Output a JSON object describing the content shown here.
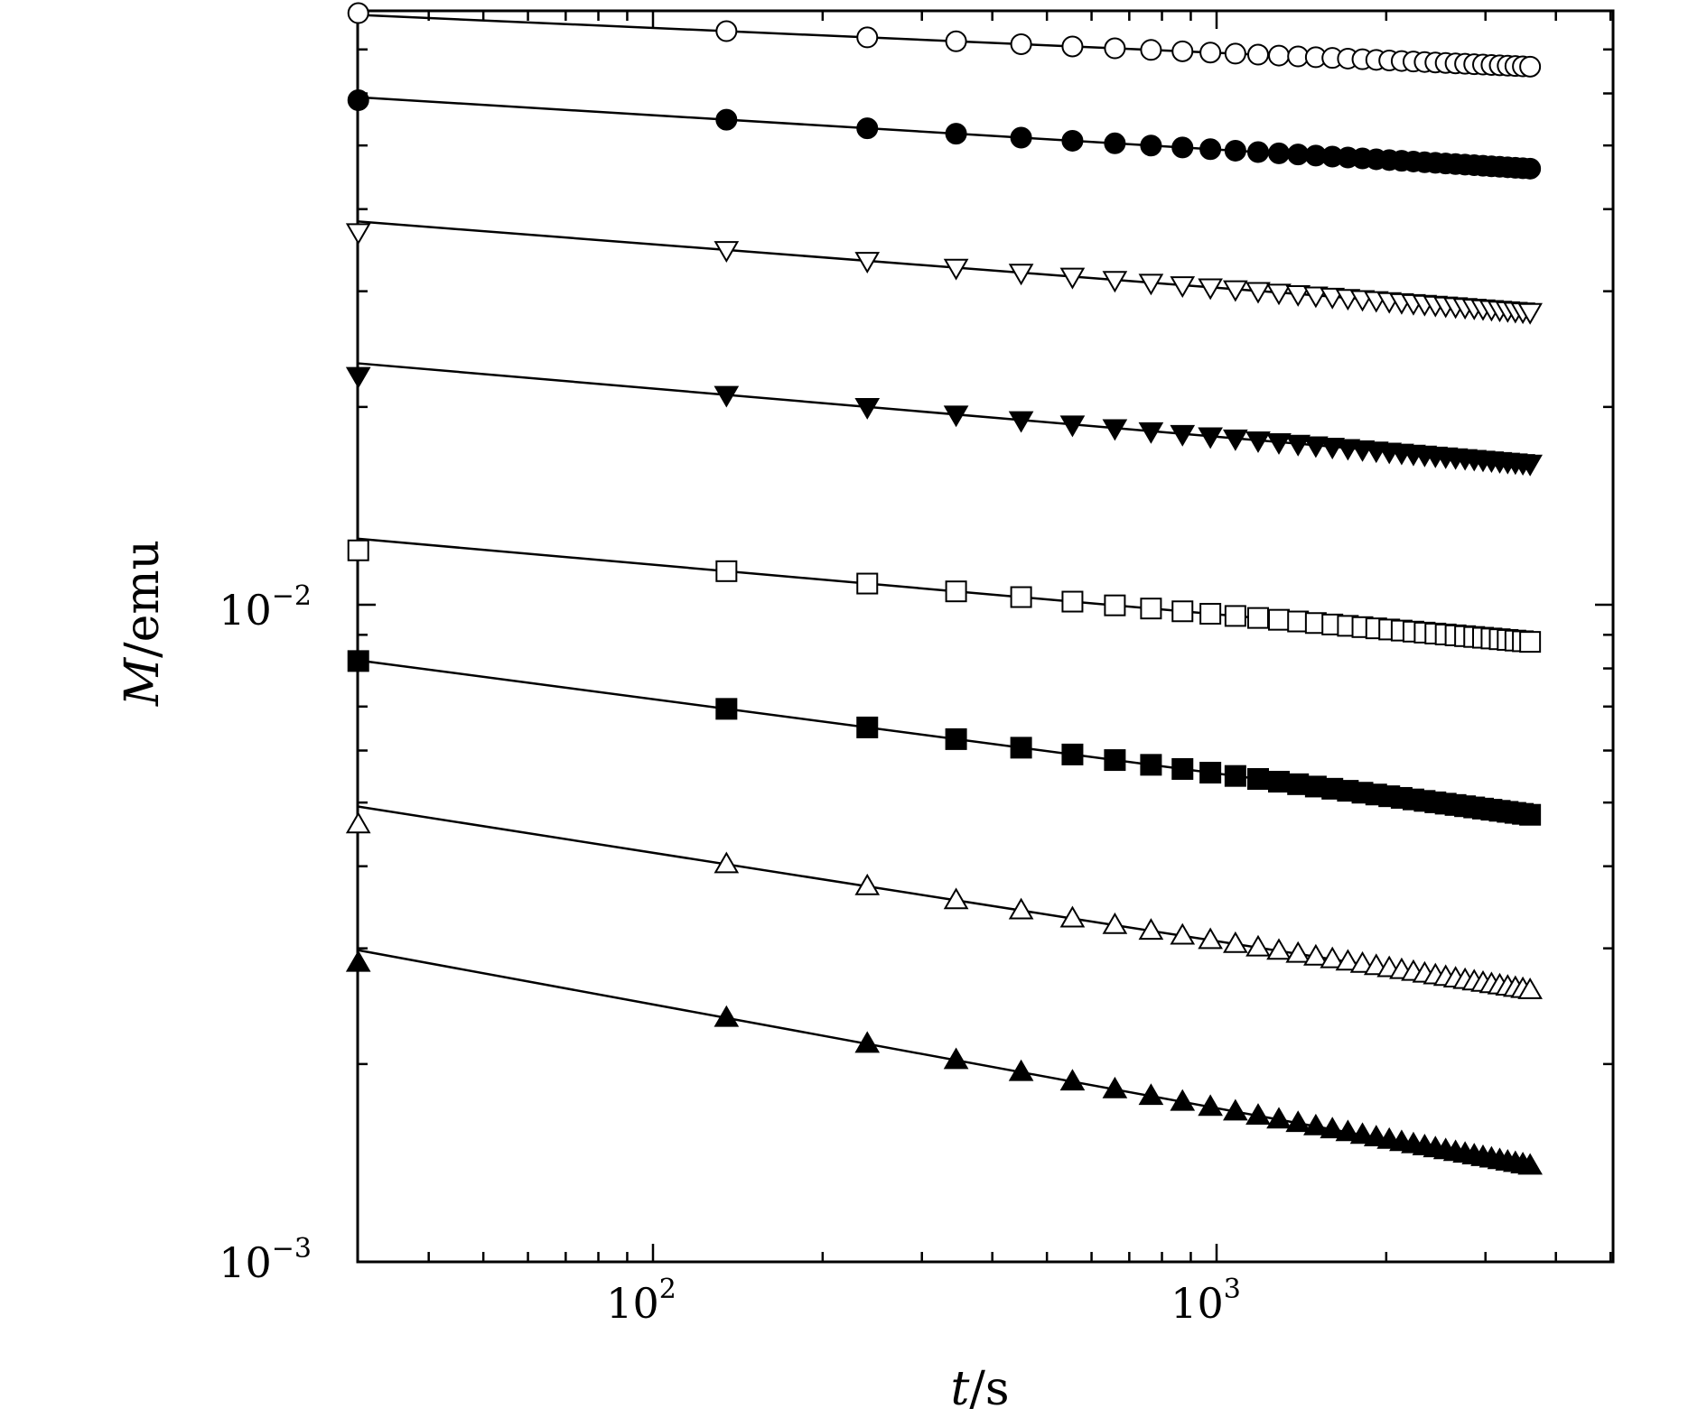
{
  "chart_data": {
    "type": "scatter",
    "title": "",
    "xlabel_var": "t",
    "xlabel_unit": "/s",
    "ylabel_var": "M",
    "ylabel_unit": "/emu",
    "x_scale": "log",
    "y_scale": "log",
    "xlim": [
      30,
      4000
    ],
    "ylim": [
      0.001,
      0.1
    ],
    "x_ticks": [
      {
        "base": "10",
        "exp": "2"
      },
      {
        "base": "10",
        "exp": "3"
      }
    ],
    "y_ticks": [
      {
        "base": "10",
        "exp": "−2"
      },
      {
        "base": "10",
        "exp": "−3"
      }
    ],
    "grid": false,
    "legend": "none",
    "x": [
      30,
      135,
      240,
      345,
      450,
      555,
      660,
      765,
      870,
      975,
      1080,
      1185,
      1290,
      1395,
      1500,
      1605,
      1710,
      1815,
      1920,
      2025,
      2130,
      2235,
      2340,
      2445,
      2550,
      2655,
      2760,
      2865,
      2970,
      3075,
      3180,
      3285,
      3390,
      3495,
      3600
    ],
    "series": [
      {
        "marker": "circle-open",
        "fit_start": 0.079,
        "fit_end": 0.0659,
        "points_start": 0.0795
      },
      {
        "marker": "circle-filled",
        "fit_start": 0.0592,
        "fit_end": 0.0461,
        "points_start": 0.0586
      },
      {
        "marker": "tri-down-open",
        "fit_start": 0.0383,
        "fit_end": 0.0279,
        "points_start": 0.0369
      },
      {
        "marker": "tri-down-filled",
        "fit_start": 0.0233,
        "fit_end": 0.0164,
        "points_start": 0.0223
      },
      {
        "marker": "square-open",
        "fit_start": 0.0126,
        "fit_end": 0.00878,
        "points_start": 0.0121
      },
      {
        "marker": "square-filled",
        "fit_start": 0.00823,
        "fit_end": 0.00479,
        "points_start": 0.00821
      },
      {
        "marker": "tri-up-open",
        "fit_start": 0.00493,
        "fit_end": 0.00259,
        "points_start": 0.00463
      },
      {
        "marker": "tri-up-filled",
        "fit_start": 0.00298,
        "fit_end": 0.0014,
        "points_start": 0.00285
      }
    ]
  }
}
